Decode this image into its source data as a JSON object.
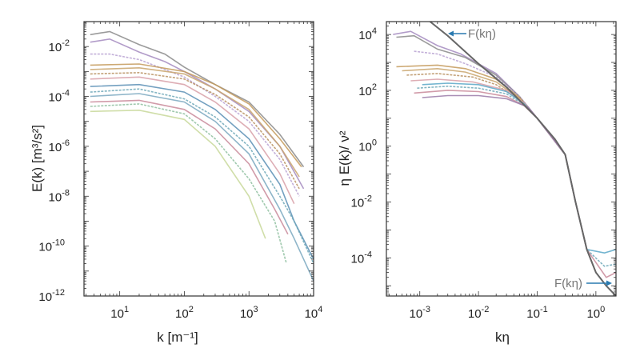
{
  "chart_data": [
    {
      "type": "line",
      "xscale": "log",
      "yscale": "log",
      "xlim": [
        2.8,
        10000
      ],
      "ylim": [
        1e-12,
        0.1
      ],
      "xlabel": "k [m⁻¹]",
      "ylabel": "E(k) [m³/s²]",
      "xticks": [
        {
          "value": 10,
          "exp": "1"
        },
        {
          "value": 100,
          "exp": "2"
        },
        {
          "value": 1000,
          "exp": "3"
        },
        {
          "value": 10000,
          "exp": "4"
        }
      ],
      "yticks": [
        {
          "value": 1e-12,
          "exp": "-12"
        },
        {
          "value": 1e-10,
          "exp": "-10"
        },
        {
          "value": 1e-08,
          "exp": "-8"
        },
        {
          "value": 1e-06,
          "exp": "-6"
        },
        {
          "value": 0.0001,
          "exp": "-4"
        },
        {
          "value": 0.01,
          "exp": "-2"
        }
      ],
      "grid": false,
      "series": [
        {
          "color": "#8a8a8a",
          "points": [
            [
              3.5,
              0.03
            ],
            [
              7,
              0.04
            ],
            [
              20,
              0.012
            ],
            [
              50,
              0.005
            ],
            [
              100,
              0.0015
            ],
            [
              300,
              0.0003
            ],
            [
              1000,
              6e-05
            ],
            [
              3000,
              3e-06
            ],
            [
              7000,
              1.5e-07
            ]
          ]
        },
        {
          "color": "#a58bc0",
          "points": [
            [
              3.5,
              0.015
            ],
            [
              7,
              0.02
            ],
            [
              20,
              0.006
            ],
            [
              50,
              0.0025
            ],
            [
              100,
              0.001
            ],
            [
              300,
              0.0002
            ],
            [
              1000,
              2.5e-05
            ],
            [
              3000,
              1e-06
            ],
            [
              7000,
              2e-08
            ]
          ]
        },
        {
          "color": "#b9a2d2",
          "points": [
            [
              3.5,
              0.005
            ],
            [
              7,
              0.005
            ],
            [
              20,
              0.003
            ],
            [
              100,
              0.0006
            ],
            [
              300,
              0.0001
            ],
            [
              1000,
              1e-05
            ],
            [
              3000,
              3e-07
            ],
            [
              6000,
              1e-08
            ]
          ]
        },
        {
          "color": "#c49a5a",
          "points": [
            [
              3.5,
              0.0018
            ],
            [
              20,
              0.002
            ],
            [
              100,
              0.001
            ],
            [
              300,
              0.0003
            ],
            [
              1000,
              5e-05
            ],
            [
              3000,
              2e-06
            ],
            [
              6500,
              1.5e-07
            ]
          ]
        },
        {
          "color": "#c9a46c",
          "points": [
            [
              3.5,
              0.0012
            ],
            [
              20,
              0.0014
            ],
            [
              100,
              0.0008
            ],
            [
              300,
              0.0002
            ],
            [
              1000,
              3e-05
            ],
            [
              3000,
              1e-06
            ],
            [
              6000,
              6e-08
            ]
          ]
        },
        {
          "color": "#b89060",
          "points": [
            [
              3.5,
              0.0008
            ],
            [
              20,
              0.0009
            ],
            [
              100,
              0.0005
            ],
            [
              300,
              0.00012
            ],
            [
              1000,
              1.5e-05
            ],
            [
              3000,
              5e-07
            ],
            [
              6000,
              2e-08
            ]
          ]
        },
        {
          "color": "#d8a0a8",
          "points": [
            [
              3.5,
              0.0005
            ],
            [
              20,
              0.0006
            ],
            [
              100,
              0.0003
            ],
            [
              300,
              6e-05
            ],
            [
              1000,
              5e-06
            ],
            [
              3000,
              8e-08
            ],
            [
              5000,
              5e-09
            ]
          ]
        },
        {
          "color": "#5a8fb5",
          "points": [
            [
              3.5,
              0.00025
            ],
            [
              20,
              0.0003
            ],
            [
              100,
              0.00015
            ],
            [
              300,
              3e-05
            ],
            [
              1000,
              2e-06
            ],
            [
              3000,
              3e-08
            ],
            [
              5000,
              1e-09
            ],
            [
              10000,
              3e-11
            ]
          ]
        },
        {
          "color": "#6fa8b8",
          "points": [
            [
              3.5,
              0.00015
            ],
            [
              20,
              0.0002
            ],
            [
              100,
              8e-05
            ],
            [
              300,
              1.5e-05
            ],
            [
              1000,
              1e-06
            ],
            [
              3000,
              1e-08
            ],
            [
              5000,
              1e-09
            ],
            [
              10000,
              2e-11
            ]
          ]
        },
        {
          "color": "#7aa8c0",
          "points": [
            [
              3.5,
              0.0001
            ],
            [
              20,
              0.00013
            ],
            [
              100,
              6e-05
            ],
            [
              300,
              1e-05
            ],
            [
              1000,
              5e-07
            ],
            [
              3000,
              3e-09
            ],
            [
              5000,
              2e-10
            ],
            [
              10000,
              4e-12
            ]
          ]
        },
        {
          "color": "#c98a9a",
          "points": [
            [
              3.5,
              6e-05
            ],
            [
              20,
              7e-05
            ],
            [
              100,
              3e-05
            ],
            [
              300,
              5e-06
            ],
            [
              1000,
              2e-07
            ],
            [
              2500,
              3e-09
            ],
            [
              4000,
              3e-10
            ]
          ]
        },
        {
          "color": "#8fc0a0",
          "points": [
            [
              3.5,
              4e-05
            ],
            [
              20,
              5e-05
            ],
            [
              100,
              2e-05
            ],
            [
              300,
              2e-06
            ],
            [
              1000,
              5e-08
            ],
            [
              2500,
              1e-09
            ],
            [
              3800,
              2e-11
            ]
          ]
        },
        {
          "color": "#c8d89a",
          "points": [
            [
              3.5,
              2.5e-05
            ],
            [
              20,
              2.8e-05
            ],
            [
              100,
              1.2e-05
            ],
            [
              300,
              1e-06
            ],
            [
              1000,
              1e-08
            ],
            [
              1800,
              2e-10
            ]
          ]
        }
      ]
    },
    {
      "type": "line",
      "xscale": "log",
      "yscale": "log",
      "xlim": [
        0.00027,
        2.2
      ],
      "ylim": [
        4.3e-06,
        29000
      ],
      "xlabel": "kη",
      "ylabel": "η E(k)/ ν²",
      "xticks": [
        {
          "value": 0.001,
          "exp": "-3"
        },
        {
          "value": 0.01,
          "exp": "-2"
        },
        {
          "value": 0.1,
          "exp": "-1"
        },
        {
          "value": 1,
          "exp": "0"
        }
      ],
      "yticks": [
        {
          "value": 0.0001,
          "exp": "-4"
        },
        {
          "value": 0.01,
          "exp": "-2"
        },
        {
          "value": 1,
          "exp": "0"
        },
        {
          "value": 100,
          "exp": "2"
        },
        {
          "value": 10000,
          "exp": "4"
        }
      ],
      "grid": false,
      "series": [
        {
          "color": "#a58bc0",
          "points": [
            [
              0.00035,
              10000.0
            ],
            [
              0.0007,
              13000.0
            ],
            [
              0.002,
              4000.0
            ],
            [
              0.005,
              2000.0
            ],
            [
              0.02,
              400.0
            ],
            [
              0.05,
              60
            ],
            [
              0.1,
              10
            ],
            [
              0.3,
              0.5
            ],
            [
              0.45,
              0.01
            ],
            [
              0.7,
              0.0002
            ],
            [
              1,
              3e-05
            ]
          ]
        },
        {
          "color": "#8a8a8a",
          "points": [
            [
              0.0004,
              8000.0
            ],
            [
              0.0008,
              9000.0
            ],
            [
              0.002,
              3000.0
            ],
            [
              0.006,
              1500.0
            ],
            [
              0.02,
              350.0
            ],
            [
              0.05,
              60
            ],
            [
              0.1,
              10
            ],
            [
              0.3,
              0.5
            ],
            [
              0.45,
              0.01
            ],
            [
              0.7,
              0.0002
            ],
            [
              1,
              3e-05
            ]
          ]
        },
        {
          "color": "#b9a2d2",
          "points": [
            [
              0.0008,
              2500.0
            ],
            [
              0.002,
              2000.0
            ],
            [
              0.006,
              900.0
            ],
            [
              0.02,
              300.0
            ],
            [
              0.05,
              60
            ],
            [
              0.1,
              10
            ],
            [
              0.3,
              0.5
            ],
            [
              0.45,
              0.01
            ],
            [
              0.7,
              0.0002
            ]
          ]
        },
        {
          "color": "#c49a5a",
          "points": [
            [
              0.0004,
              700.0
            ],
            [
              0.002,
              800.0
            ],
            [
              0.006,
              600.0
            ],
            [
              0.02,
              250.0
            ],
            [
              0.05,
              55
            ],
            [
              0.1,
              10
            ],
            [
              0.3,
              0.5
            ],
            [
              0.45,
              0.01
            ],
            [
              0.7,
              0.0002
            ],
            [
              1,
              3e-05
            ]
          ]
        },
        {
          "color": "#c9a46c",
          "points": [
            [
              0.0005,
              500.0
            ],
            [
              0.002,
              600.0
            ],
            [
              0.006,
              450.0
            ],
            [
              0.02,
              200.0
            ],
            [
              0.05,
              50
            ],
            [
              0.1,
              10
            ],
            [
              0.3,
              0.5
            ],
            [
              0.45,
              0.01
            ],
            [
              0.7,
              0.0002
            ]
          ]
        },
        {
          "color": "#b89060",
          "points": [
            [
              0.0006,
              350.0
            ],
            [
              0.002,
              400.0
            ],
            [
              0.008,
              300.0
            ],
            [
              0.02,
              160.0
            ],
            [
              0.05,
              45
            ],
            [
              0.1,
              10
            ],
            [
              0.3,
              0.5
            ],
            [
              0.45,
              0.01
            ],
            [
              0.7,
              0.0002
            ]
          ]
        },
        {
          "color": "#d8a0a8",
          "points": [
            [
              0.0007,
              220.0
            ],
            [
              0.002,
              250.0
            ],
            [
              0.008,
              200.0
            ],
            [
              0.03,
              100.0
            ],
            [
              0.06,
              35
            ],
            [
              0.1,
              10
            ],
            [
              0.3,
              0.5
            ],
            [
              0.45,
              0.01
            ],
            [
              0.7,
              0.0002
            ]
          ]
        },
        {
          "color": "#5aa8c8",
          "points": [
            [
              0.0011,
              160.0
            ],
            [
              0.003,
              180.0
            ],
            [
              0.01,
              160.0
            ],
            [
              0.03,
              90
            ],
            [
              0.06,
              33
            ],
            [
              0.1,
              10
            ],
            [
              0.3,
              0.5
            ],
            [
              0.45,
              0.01
            ],
            [
              0.7,
              0.0002
            ],
            [
              1.4,
              0.00015
            ],
            [
              2.2,
              0.0002
            ]
          ]
        },
        {
          "color": "#6fa8b8",
          "points": [
            [
              0.0009,
              120.0
            ],
            [
              0.003,
              140.0
            ],
            [
              0.01,
              120.0
            ],
            [
              0.03,
              75
            ],
            [
              0.06,
              30
            ],
            [
              0.1,
              10
            ],
            [
              0.3,
              0.5
            ],
            [
              0.45,
              0.01
            ],
            [
              0.7,
              0.0002
            ],
            [
              1.4,
              5e-05
            ],
            [
              2.2,
              6e-05
            ]
          ]
        },
        {
          "color": "#c98a9a",
          "points": [
            [
              0.0008,
              80
            ],
            [
              0.003,
              100.0
            ],
            [
              0.01,
              90
            ],
            [
              0.03,
              60
            ],
            [
              0.06,
              28
            ],
            [
              0.1,
              10
            ],
            [
              0.3,
              0.5
            ],
            [
              0.45,
              0.01
            ],
            [
              0.7,
              0.0002
            ],
            [
              1.5,
              2e-05
            ],
            [
              2.2,
              3e-05
            ]
          ]
        },
        {
          "color": "#9a7aa8",
          "points": [
            [
              0.0011,
              55
            ],
            [
              0.003,
              65
            ],
            [
              0.01,
              65
            ],
            [
              0.03,
              50
            ],
            [
              0.07,
              25
            ],
            [
              0.1,
              10
            ],
            [
              0.3,
              0.5
            ],
            [
              0.45,
              0.01
            ],
            [
              0.7,
              0.0002
            ]
          ]
        }
      ],
      "reference_curve": {
        "label": "F(kη)",
        "color": "#666666",
        "points": [
          [
            0.0015,
            29000
          ],
          [
            0.003,
            9000
          ],
          [
            0.01,
            900
          ],
          [
            0.03,
            130
          ],
          [
            0.1,
            10
          ],
          [
            0.2,
            1.8
          ],
          [
            0.3,
            0.5
          ],
          [
            0.45,
            0.01
          ],
          [
            0.7,
            0.0002
          ],
          [
            1,
            3e-05
          ],
          [
            1.5,
            1e-05
          ],
          [
            2.2,
            4.3e-06
          ]
        ]
      },
      "annotations": [
        {
          "text": "F(kη)",
          "arrow": "left",
          "arrow_color": "#2a7ab0"
        },
        {
          "text": "F(kη)",
          "arrow": "right",
          "arrow_color": "#2a7ab0"
        }
      ]
    }
  ]
}
